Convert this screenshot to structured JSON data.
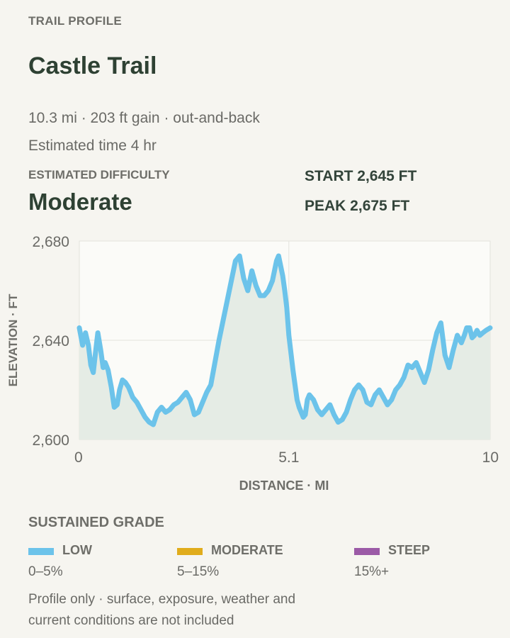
{
  "header": {
    "eyebrow": "TRAIL PROFILE",
    "title": "Castle Trail",
    "meta_line": "10.3 mi · 203 ft gain · out-and-back",
    "time_line": "Estimated time 4 hr"
  },
  "difficulty": {
    "label": "ESTIMATED DIFFICULTY",
    "value": "Moderate"
  },
  "stats": {
    "start": "START 2,645 FT",
    "peak": "PEAK 2,675 FT"
  },
  "chart_data": {
    "type": "area",
    "xlabel": "DISTANCE · MI",
    "ylabel": "ELEVATION · FT",
    "xlim": [
      0,
      10
    ],
    "ylim": [
      2600,
      2680
    ],
    "x_ticks": [
      0,
      5.1,
      10
    ],
    "x_tick_labels": [
      "0",
      "5.1",
      "10"
    ],
    "y_ticks": [
      2600,
      2640,
      2680
    ],
    "y_tick_labels": [
      "2,600",
      "2,640",
      "2,680"
    ],
    "grid": true,
    "line_color": "#6cc3ea",
    "fill_color": "#e5ece5",
    "x": [
      0,
      0.08,
      0.15,
      0.22,
      0.28,
      0.34,
      0.4,
      0.45,
      0.52,
      0.58,
      0.63,
      0.7,
      0.78,
      0.85,
      0.92,
      0.98,
      1.05,
      1.12,
      1.2,
      1.3,
      1.4,
      1.5,
      1.6,
      1.7,
      1.8,
      1.9,
      2.0,
      2.1,
      2.2,
      2.3,
      2.4,
      2.5,
      2.6,
      2.7,
      2.8,
      2.9,
      3.0,
      3.1,
      3.2,
      3.3,
      3.4,
      3.5,
      3.6,
      3.7,
      3.8,
      3.9,
      4.0,
      4.1,
      4.2,
      4.3,
      4.4,
      4.5,
      4.6,
      4.7,
      4.8,
      4.85,
      4.9,
      4.95,
      5.0,
      5.05,
      5.1,
      5.15,
      5.2,
      5.25,
      5.3,
      5.35,
      5.4,
      5.45,
      5.5,
      5.55,
      5.6,
      5.7,
      5.8,
      5.9,
      6.0,
      6.1,
      6.2,
      6.3,
      6.4,
      6.5,
      6.6,
      6.7,
      6.8,
      6.9,
      7.0,
      7.1,
      7.2,
      7.3,
      7.4,
      7.5,
      7.6,
      7.7,
      7.8,
      7.9,
      8.0,
      8.1,
      8.2,
      8.3,
      8.4,
      8.5,
      8.6,
      8.7,
      8.8,
      8.9,
      9.0,
      9.1,
      9.2,
      9.3,
      9.37,
      9.43,
      9.5,
      9.56,
      9.62,
      9.68,
      9.75,
      9.82,
      9.9,
      10.0
    ],
    "y": [
      2645,
      2638,
      2643,
      2638,
      2630,
      2627,
      2636,
      2643,
      2636,
      2629,
      2631,
      2628,
      2621,
      2613,
      2614,
      2620,
      2624,
      2623,
      2621,
      2617,
      2615,
      2612,
      2609,
      2607,
      2606,
      2611,
      2613,
      2611,
      2612,
      2614,
      2615,
      2617,
      2619,
      2616,
      2610,
      2611,
      2615,
      2619,
      2622,
      2631,
      2640,
      2648,
      2656,
      2664,
      2672,
      2674,
      2665,
      2660,
      2668,
      2662,
      2658,
      2658,
      2660,
      2664,
      2672,
      2674,
      2670,
      2666,
      2660,
      2653,
      2642,
      2635,
      2628,
      2622,
      2616,
      2613,
      2611,
      2609,
      2610,
      2616,
      2618,
      2616,
      2612,
      2610,
      2612,
      2614,
      2610,
      2607,
      2608,
      2611,
      2616,
      2620,
      2622,
      2620,
      2615,
      2614,
      2618,
      2620,
      2617,
      2614,
      2616,
      2620,
      2622,
      2625,
      2630,
      2629,
      2631,
      2627,
      2623,
      2628,
      2636,
      2643,
      2647,
      2634,
      2629,
      2636,
      2642,
      2639,
      2642,
      2645,
      2645,
      2641,
      2642,
      2644,
      2642,
      2643,
      2644,
      2645
    ]
  },
  "grade": {
    "title": "SUSTAINED GRADE",
    "items": [
      {
        "name": "LOW",
        "range": "0–5%",
        "color": "#6cc3ea"
      },
      {
        "name": "MODERATE",
        "range": "5–15%",
        "color": "#e0ac1c"
      },
      {
        "name": "STEEP",
        "range": "15%+",
        "color": "#9b5aa6"
      }
    ]
  },
  "footnote": "Profile only · surface, exposure, weather and current conditions are not included"
}
